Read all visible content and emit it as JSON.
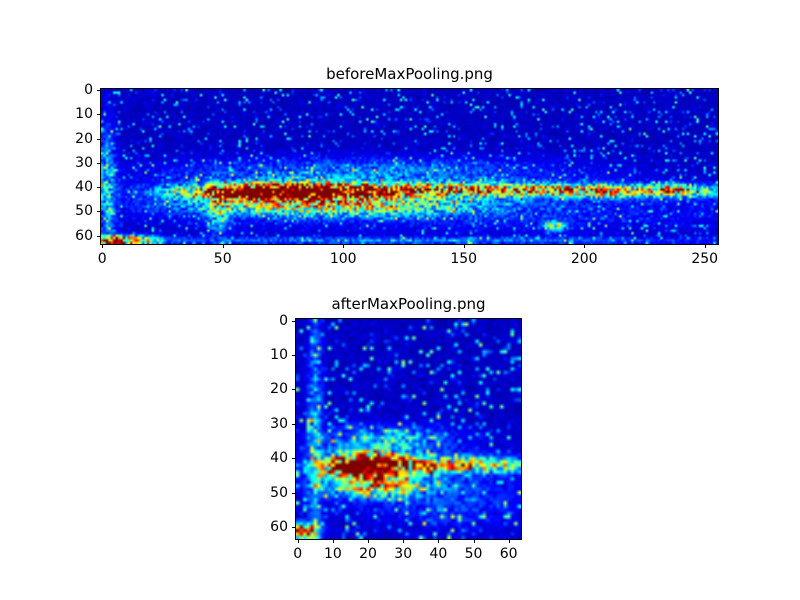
{
  "figure": {
    "background": "#ffffff",
    "border_color": "#000000",
    "low_color": "#00007f",
    "colormap_name": "jet"
  },
  "chart_data": [
    {
      "type": "heatmap",
      "title": "beforeMaxPooling.png",
      "colormap": "jet",
      "xlabel": "",
      "ylabel": "",
      "x_ticks": [
        0,
        50,
        100,
        150,
        200,
        250
      ],
      "y_ticks": [
        0,
        10,
        20,
        30,
        40,
        50,
        60
      ],
      "x_range": [
        0,
        255
      ],
      "y_range": [
        0,
        63
      ],
      "grid": {
        "cols": 256,
        "rows": 64
      },
      "description": "Spectrogram-like feature map on dark blue (jet) background; dominant hot red/yellow horizontal band near rows 38-46, strongest at columns 50-120, speckled cyan/green tail continuing to column 255; secondary green band near rows 46-50; bright green/cyan patch on bottom rows 60-63 at columns 0-18; sparse blue noise speckle elsewhere.",
      "background_level": 0.04,
      "noise": {
        "seed": 11,
        "amount": 0.4,
        "prob": 0.2
      },
      "blobs": [
        {
          "cx": 80,
          "cy": 42,
          "sx": 28,
          "sy": 2.3,
          "amp": 1.35
        },
        {
          "cx": 62,
          "cy": 43,
          "sx": 10,
          "sy": 1.5,
          "amp": 0.55
        },
        {
          "cx": 150,
          "cy": 41,
          "sx": 55,
          "sy": 1.9,
          "amp": 0.55
        },
        {
          "cx": 215,
          "cy": 42,
          "sx": 40,
          "sy": 1.7,
          "amp": 0.35
        },
        {
          "cx": 237,
          "cy": 41,
          "sx": 6,
          "sy": 1.5,
          "amp": 0.4
        },
        {
          "cx": 95,
          "cy": 48,
          "sx": 38,
          "sy": 2.6,
          "amp": 0.5
        },
        {
          "cx": 110,
          "cy": 34,
          "sx": 55,
          "sy": 4.0,
          "amp": 0.2
        },
        {
          "cx": 150,
          "cy": 50,
          "sx": 90,
          "sy": 6.0,
          "amp": 0.1
        },
        {
          "cx": 48,
          "cy": 50,
          "sx": 3,
          "sy": 7,
          "amp": 0.3
        },
        {
          "cx": 8,
          "cy": 62,
          "sx": 9,
          "sy": 1.3,
          "amp": 0.85
        },
        {
          "cx": 130,
          "cy": 62,
          "sx": 90,
          "sy": 1.0,
          "amp": 0.18
        },
        {
          "cx": 188,
          "cy": 56,
          "sx": 3,
          "sy": 1.5,
          "amp": 0.45
        },
        {
          "cx": 2,
          "cy": 40,
          "sx": 2.5,
          "sy": 18,
          "amp": 0.25
        }
      ]
    },
    {
      "type": "heatmap",
      "title": "afterMaxPooling.png",
      "colormap": "jet",
      "xlabel": "",
      "ylabel": "",
      "x_ticks": [
        0,
        10,
        20,
        30,
        40,
        50,
        60
      ],
      "y_ticks": [
        0,
        10,
        20,
        30,
        40,
        50,
        60
      ],
      "x_range": [
        0,
        63
      ],
      "y_range": [
        0,
        63
      ],
      "grid": {
        "cols": 64,
        "rows": 64
      },
      "description": "Max-pooled version of the feature map; hot red/yellow band near rows 40-44 strongest at columns 12-28 with cyan dashes continuing to column 60; weaker green band near rows 46-50; faint cyan speckles near rows 33-37; faint vertical cyan streak near column 4-5; bright green patch at bottom-left rows 60-63 columns 0-4.",
      "background_level": 0.04,
      "noise": {
        "seed": 29,
        "amount": 0.45,
        "prob": 0.25
      },
      "blobs": [
        {
          "cx": 20,
          "cy": 42,
          "sx": 8,
          "sy": 2.2,
          "amp": 1.35
        },
        {
          "cx": 15,
          "cy": 43,
          "sx": 4,
          "sy": 1.4,
          "amp": 0.5
        },
        {
          "cx": 40,
          "cy": 42,
          "sx": 14,
          "sy": 1.6,
          "amp": 0.5
        },
        {
          "cx": 55,
          "cy": 42,
          "sx": 8,
          "sy": 1.4,
          "amp": 0.3
        },
        {
          "cx": 22,
          "cy": 48,
          "sx": 9,
          "sy": 2.2,
          "amp": 0.55
        },
        {
          "cx": 25,
          "cy": 35,
          "sx": 12,
          "sy": 2.8,
          "amp": 0.3
        },
        {
          "cx": 35,
          "cy": 47,
          "sx": 20,
          "sy": 6,
          "amp": 0.1
        },
        {
          "cx": 2,
          "cy": 61,
          "sx": 2.5,
          "sy": 1.5,
          "amp": 0.95
        },
        {
          "cx": 5,
          "cy": 32,
          "sx": 1.4,
          "sy": 24,
          "amp": 0.25
        },
        {
          "cx": 45,
          "cy": 55,
          "sx": 15,
          "sy": 5,
          "amp": 0.08
        }
      ]
    }
  ]
}
